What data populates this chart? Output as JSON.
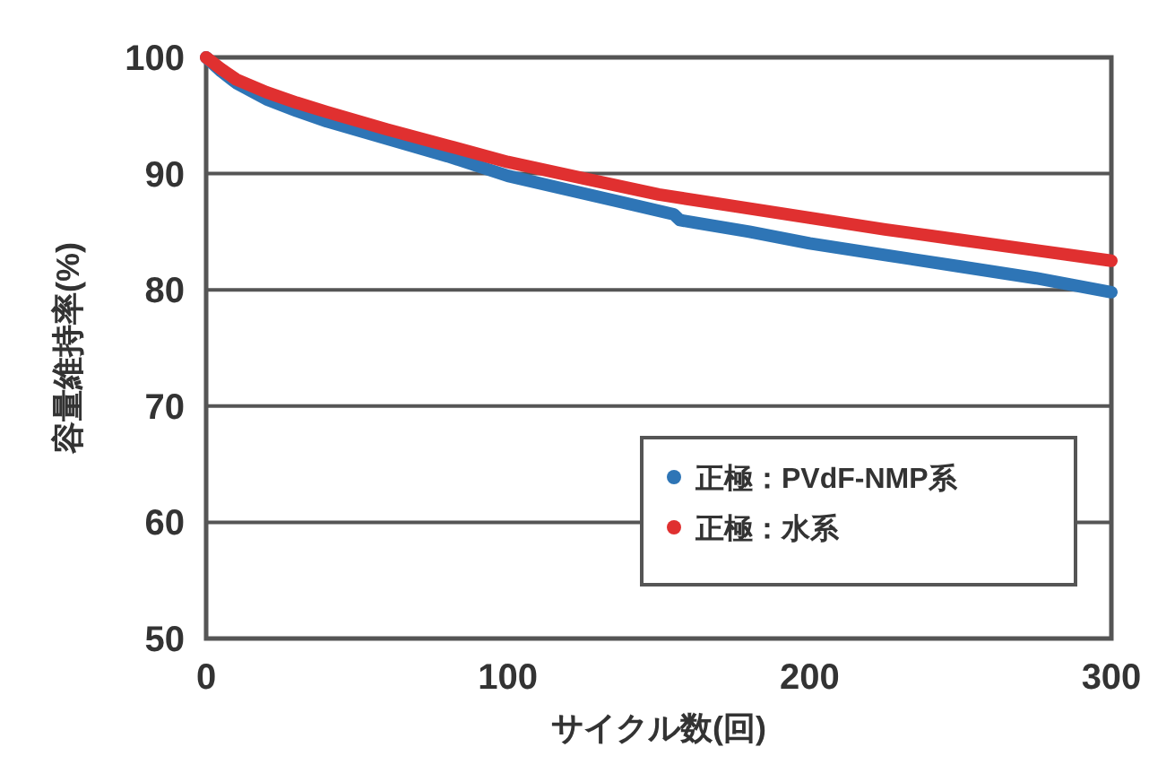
{
  "chart_data": {
    "type": "line",
    "xlabel": "サイクル数(回)",
    "ylabel": "容量維持率(%)",
    "xlim": [
      0,
      300
    ],
    "xticks": [
      0,
      100,
      200,
      300
    ],
    "ylim": [
      50,
      100
    ],
    "yticks": [
      50,
      60,
      70,
      80,
      90,
      100
    ],
    "grid": "y",
    "legend": "bottom right",
    "series": [
      {
        "name": "正極：PVdF-NMP系",
        "color": "#2e75b6",
        "x": [
          0,
          5,
          10,
          20,
          30,
          40,
          60,
          80,
          100,
          120,
          140,
          155,
          157,
          180,
          200,
          225,
          250,
          275,
          300
        ],
        "values": [
          100,
          98.8,
          97.8,
          96.4,
          95.4,
          94.5,
          93,
          91.5,
          89.8,
          88.6,
          87.4,
          86.5,
          86,
          85,
          84,
          83,
          82,
          81,
          79.8
        ]
      },
      {
        "name": "正極：水系",
        "color": "#e03030",
        "x": [
          0,
          5,
          10,
          20,
          30,
          40,
          60,
          80,
          100,
          125,
          150,
          175,
          200,
          225,
          250,
          275,
          300
        ],
        "values": [
          100,
          99,
          98.1,
          97,
          96.1,
          95.3,
          93.8,
          92.4,
          91,
          89.6,
          88.2,
          87.2,
          86.2,
          85.2,
          84.3,
          83.4,
          82.5
        ]
      }
    ]
  }
}
